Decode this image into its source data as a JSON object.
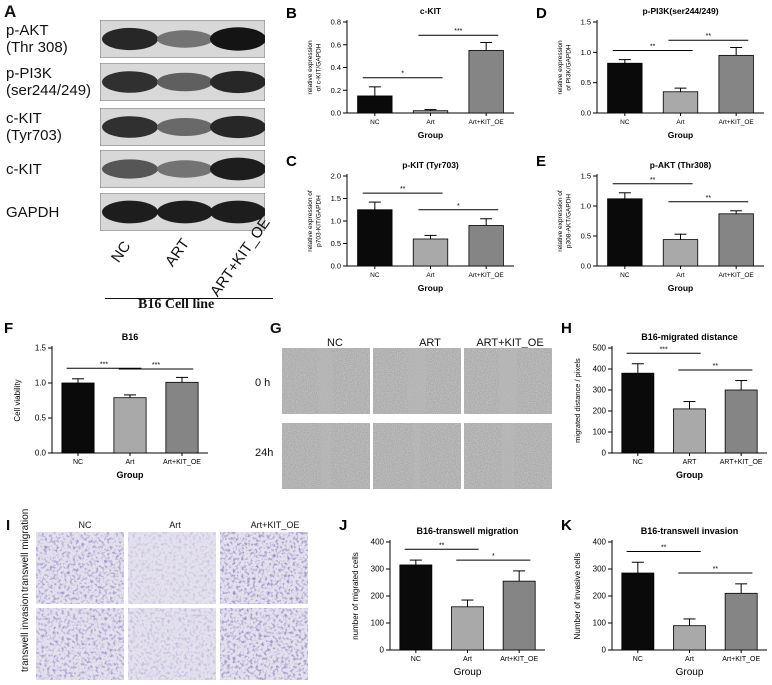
{
  "blot": {
    "panel_label": "A",
    "rows": [
      {
        "label": "p-AKT\n(Thr 308)",
        "intensity": [
          0.85,
          0.45,
          0.95
        ]
      },
      {
        "label": "p-PI3K\n(ser244/249)",
        "intensity": [
          0.8,
          0.55,
          0.85
        ]
      },
      {
        "label": "c-KIT\n(Tyr703)",
        "intensity": [
          0.8,
          0.5,
          0.85
        ]
      },
      {
        "label": "c-KIT",
        "intensity": [
          0.6,
          0.45,
          0.9
        ]
      },
      {
        "label": "GAPDH",
        "intensity": [
          0.9,
          0.9,
          0.9
        ]
      }
    ],
    "lanes": [
      "NC",
      "ART",
      "ART+KIT_OE"
    ],
    "cell_line": "B16 Cell line"
  },
  "colors": {
    "nc": "#0a0a0a",
    "art": "#a9a9a9",
    "oe": "#858585"
  },
  "chart_data": [
    {
      "panel": "B",
      "type": "bar",
      "title": "c-KIT",
      "ylabel": "relative expression of c-KIT/GAPDH",
      "xlabel": "Group",
      "categories": [
        "NC",
        "Art",
        "Art+KIT_OE"
      ],
      "values": [
        0.15,
        0.02,
        0.55
      ],
      "errors": [
        0.08,
        0.01,
        0.07
      ],
      "ylim": [
        0,
        0.8
      ],
      "yticks": [
        "0.0",
        "0.2",
        "0.4",
        "0.6",
        "0.8"
      ],
      "tickvals": [
        0,
        0.2,
        0.4,
        0.6,
        0.8
      ],
      "sig": [
        {
          "from": 0,
          "to": 1,
          "label": "*"
        },
        {
          "from": 1,
          "to": 2,
          "label": "***"
        }
      ]
    },
    {
      "panel": "C",
      "type": "bar",
      "title": "p-KIT (Tyr703)",
      "ylabel": "relative expression of p703-KIT/GAPDH",
      "xlabel": "Group",
      "categories": [
        "NC",
        "Art",
        "Art+KIT_OE"
      ],
      "values": [
        1.25,
        0.6,
        0.9
      ],
      "errors": [
        0.17,
        0.08,
        0.15
      ],
      "ylim": [
        0,
        2.0
      ],
      "yticks": [
        "0.0",
        "0.5",
        "1.0",
        "1.5",
        "2.0"
      ],
      "tickvals": [
        0,
        0.5,
        1.0,
        1.5,
        2.0
      ],
      "sig": [
        {
          "from": 0,
          "to": 1,
          "label": "**"
        },
        {
          "from": 1,
          "to": 2,
          "label": "*"
        }
      ]
    },
    {
      "panel": "D",
      "type": "bar",
      "title": "p-PI3K(ser244/249)",
      "ylabel": "relative expression of PI3K/GAPDH",
      "xlabel": "Group",
      "categories": [
        "NC",
        "Art",
        "Art+KIT_OE"
      ],
      "values": [
        0.82,
        0.35,
        0.95
      ],
      "errors": [
        0.06,
        0.06,
        0.13
      ],
      "ylim": [
        0,
        1.5
      ],
      "yticks": [
        "0.0",
        "0.5",
        "1.0",
        "1.5"
      ],
      "tickvals": [
        0,
        0.5,
        1.0,
        1.5
      ],
      "sig": [
        {
          "from": 0,
          "to": 1,
          "label": "**"
        },
        {
          "from": 1,
          "to": 2,
          "label": "**"
        }
      ]
    },
    {
      "panel": "E",
      "type": "bar",
      "title": "p-AKT (Thr308)",
      "ylabel": "relative expression of p308-AKT/GAPDH",
      "xlabel": "Group",
      "categories": [
        "NC",
        "Art",
        "Art+KIT_OE"
      ],
      "values": [
        1.12,
        0.44,
        0.87
      ],
      "errors": [
        0.1,
        0.09,
        0.05
      ],
      "ylim": [
        0,
        1.5
      ],
      "yticks": [
        "0.0",
        "0.5",
        "1.0",
        "1.5"
      ],
      "tickvals": [
        0,
        0.5,
        1.0,
        1.5
      ],
      "sig": [
        {
          "from": 0,
          "to": 1,
          "label": "**"
        },
        {
          "from": 1,
          "to": 2,
          "label": "**"
        }
      ]
    },
    {
      "panel": "F",
      "type": "bar",
      "title": "B16",
      "ylabel": "Cell viability",
      "xlabel": "Group",
      "categories": [
        "NC",
        "Art",
        "Art+KIT_OE"
      ],
      "values": [
        1.0,
        0.79,
        1.01
      ],
      "errors": [
        0.06,
        0.04,
        0.07
      ],
      "ylim": [
        0,
        1.5
      ],
      "yticks": [
        "0.0",
        "0.5",
        "1.0",
        "1.5"
      ],
      "tickvals": [
        0,
        0.5,
        1.0,
        1.5
      ],
      "sig": [
        {
          "from": 0,
          "to": 1,
          "label": "***"
        },
        {
          "from": 1,
          "to": 2,
          "label": "***"
        }
      ]
    },
    {
      "panel": "H",
      "type": "bar",
      "title": "B16-migrated distance",
      "ylabel": "migrated distance / pixels",
      "xlabel": "Group",
      "categories": [
        "NC",
        "ART",
        "ART+KIT_OE"
      ],
      "values": [
        380,
        210,
        300
      ],
      "errors": [
        45,
        35,
        45
      ],
      "ylim": [
        0,
        500
      ],
      "yticks": [
        "0",
        "100",
        "200",
        "300",
        "400",
        "500"
      ],
      "tickvals": [
        0,
        100,
        200,
        300,
        400,
        500
      ],
      "sig": [
        {
          "from": 0,
          "to": 1,
          "label": "***"
        },
        {
          "from": 1,
          "to": 2,
          "label": "**"
        }
      ]
    },
    {
      "panel": "J",
      "type": "bar",
      "title": "B16-transwell migration",
      "ylabel": "number of migrated cells",
      "xlabel": "Group",
      "categories": [
        "NC",
        "Art",
        "Art+KIT_OE"
      ],
      "values": [
        315,
        160,
        255
      ],
      "errors": [
        18,
        25,
        38
      ],
      "ylim": [
        0,
        400
      ],
      "yticks": [
        "0",
        "100",
        "200",
        "300",
        "400"
      ],
      "tickvals": [
        0,
        100,
        200,
        300,
        400
      ],
      "sig": [
        {
          "from": 0,
          "to": 1,
          "label": "**"
        },
        {
          "from": 1,
          "to": 2,
          "label": "*"
        }
      ]
    },
    {
      "panel": "K",
      "type": "bar",
      "title": "B16-transwell invasion",
      "ylabel": "Number of invasive cells",
      "xlabel": "Group",
      "categories": [
        "NC",
        "Art",
        "Art+KIT_OE"
      ],
      "values": [
        285,
        90,
        210
      ],
      "errors": [
        40,
        25,
        35
      ],
      "ylim": [
        0,
        400
      ],
      "yticks": [
        "0",
        "100",
        "200",
        "300",
        "400"
      ],
      "tickvals": [
        0,
        100,
        200,
        300,
        400
      ],
      "sig": [
        {
          "from": 0,
          "to": 1,
          "label": "**"
        },
        {
          "from": 1,
          "to": 2,
          "label": "**"
        }
      ]
    }
  ],
  "scratch": {
    "panel_label": "G",
    "columns": [
      "NC",
      "ART",
      "ART+KIT_OE"
    ],
    "rows": [
      "0 h",
      "24h"
    ]
  },
  "transwell": {
    "panel_label": "I",
    "columns": [
      "NC",
      "Art",
      "Art+KIT_OE"
    ],
    "rows": [
      "transwell migration",
      "transwell invasion"
    ]
  }
}
